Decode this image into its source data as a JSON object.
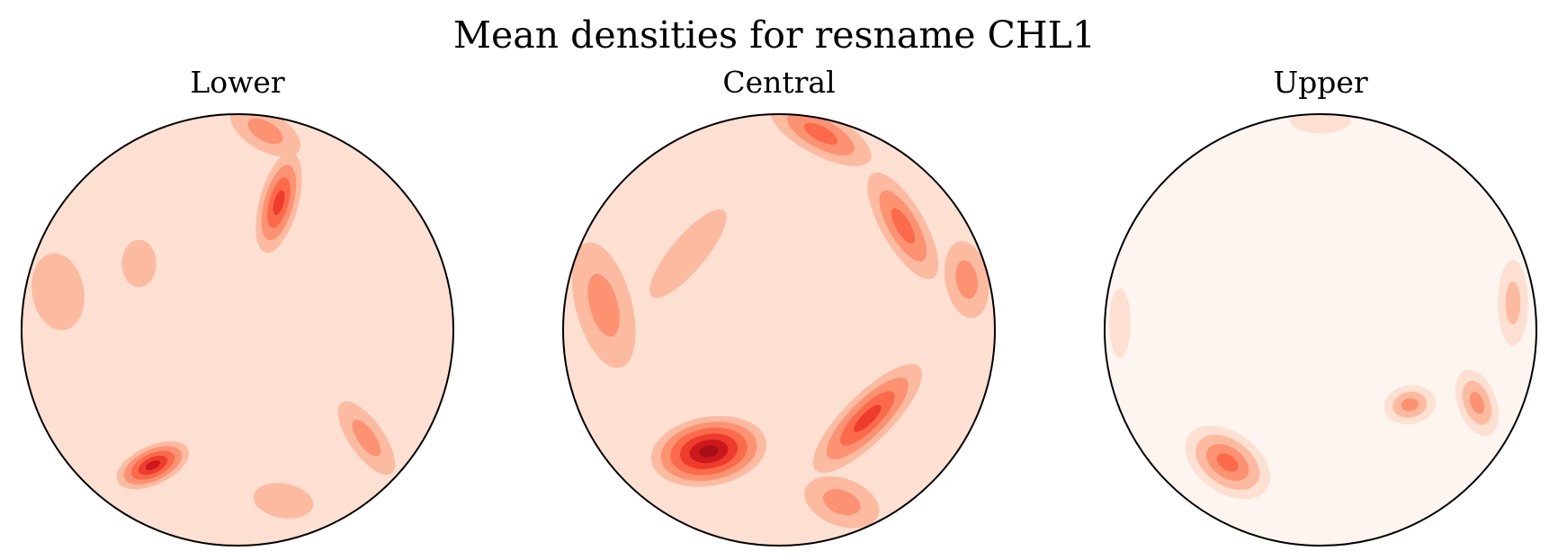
{
  "chart_data": {
    "type": "heatmap",
    "title": "Mean densities for resname CHL1",
    "colormap": "Reds",
    "colors": {
      "background": "#ffffff",
      "outline": "#000000",
      "ramp": [
        "#fff5f0",
        "#fee0d2",
        "#fcbba1",
        "#fc9272",
        "#fb6a4a",
        "#ef3b2c",
        "#cb181d",
        "#a50f15"
      ]
    },
    "panels": [
      {
        "title": "Lower",
        "base_level": 1,
        "blobs": [
          {
            "angle": 72,
            "r": 0.62,
            "rx": 0.09,
            "ry": 0.24,
            "rot": -15,
            "level": 5
          },
          {
            "angle": 82,
            "r": 0.93,
            "rx": 0.18,
            "ry": 0.09,
            "rot": -30,
            "level": 3
          },
          {
            "angle": 146,
            "r": 0.55,
            "rx": 0.08,
            "ry": 0.11,
            "rot": 0,
            "level": 2
          },
          {
            "angle": 168,
            "r": 0.85,
            "rx": 0.12,
            "ry": 0.18,
            "rot": 10,
            "level": 2
          },
          {
            "angle": 238,
            "r": 0.74,
            "rx": 0.18,
            "ry": 0.09,
            "rot": 25,
            "level": 6
          },
          {
            "angle": 285,
            "r": 0.82,
            "rx": 0.14,
            "ry": 0.08,
            "rot": -10,
            "level": 2
          },
          {
            "angle": 320,
            "r": 0.78,
            "rx": 0.08,
            "ry": 0.2,
            "rot": 35,
            "level": 3
          }
        ]
      },
      {
        "title": "Central",
        "base_level": 1,
        "blobs": [
          {
            "angle": 78,
            "r": 0.93,
            "rx": 0.26,
            "ry": 0.1,
            "rot": -28,
            "level": 4
          },
          {
            "angle": 40,
            "r": 0.75,
            "rx": 0.1,
            "ry": 0.28,
            "rot": 30,
            "level": 4
          },
          {
            "angle": 15,
            "r": 0.9,
            "rx": 0.1,
            "ry": 0.18,
            "rot": 10,
            "level": 3
          },
          {
            "angle": 172,
            "r": 0.82,
            "rx": 0.13,
            "ry": 0.3,
            "rot": 15,
            "level": 3
          },
          {
            "angle": 140,
            "r": 0.55,
            "rx": 0.08,
            "ry": 0.26,
            "rot": -40,
            "level": 2
          },
          {
            "angle": 240,
            "r": 0.65,
            "rx": 0.27,
            "ry": 0.16,
            "rot": 10,
            "level": 7
          },
          {
            "angle": 315,
            "r": 0.58,
            "rx": 0.34,
            "ry": 0.11,
            "rot": 45,
            "level": 5
          },
          {
            "angle": 290,
            "r": 0.85,
            "rx": 0.18,
            "ry": 0.11,
            "rot": -20,
            "level": 3
          }
        ]
      },
      {
        "title": "Upper",
        "base_level": 0,
        "blobs": [
          {
            "angle": 90,
            "r": 0.97,
            "rx": 0.14,
            "ry": 0.06,
            "rot": 0,
            "level": 1
          },
          {
            "angle": 8,
            "r": 0.9,
            "rx": 0.07,
            "ry": 0.2,
            "rot": 0,
            "level": 2
          },
          {
            "angle": 335,
            "r": 0.8,
            "rx": 0.09,
            "ry": 0.16,
            "rot": 20,
            "level": 3
          },
          {
            "angle": 320,
            "r": 0.54,
            "rx": 0.12,
            "ry": 0.09,
            "rot": 10,
            "level": 3
          },
          {
            "angle": 235,
            "r": 0.75,
            "rx": 0.22,
            "ry": 0.14,
            "rot": -35,
            "level": 4
          },
          {
            "angle": 178,
            "r": 0.93,
            "rx": 0.05,
            "ry": 0.16,
            "rot": 0,
            "level": 1
          }
        ]
      }
    ]
  }
}
